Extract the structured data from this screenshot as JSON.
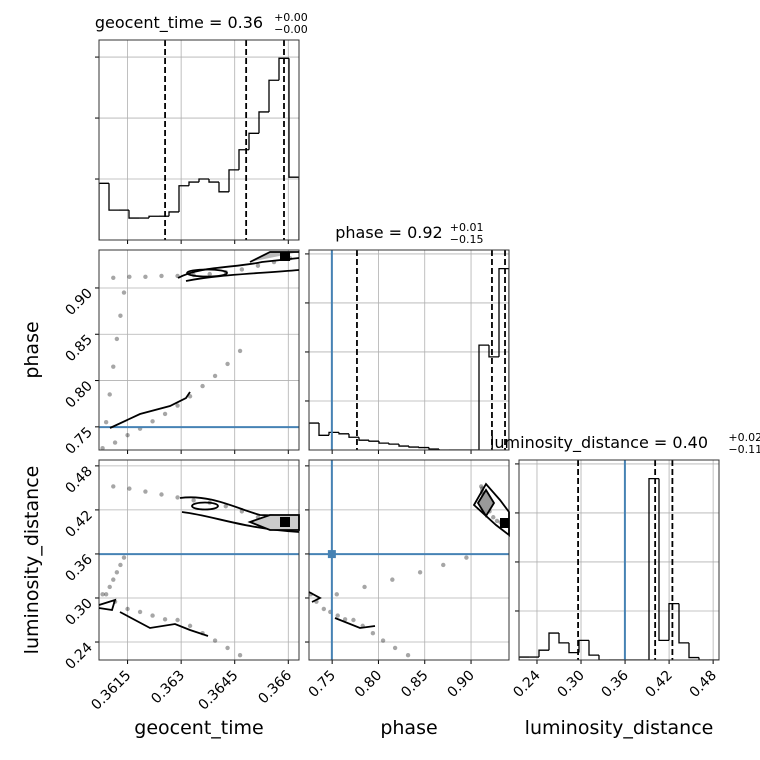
{
  "chart_data": {
    "type": "corner",
    "truth_color": "#4682b4",
    "parameters": [
      {
        "name": "geocent_time",
        "title": "geocent_time = 0.36",
        "title_plus": "+0.00",
        "title_minus": "−0.00",
        "xlim": [
          0.3607,
          0.3663
        ],
        "xticks": [
          0.3615,
          0.363,
          0.3645,
          0.366
        ],
        "bins": [
          0.3607,
          0.36098,
          0.36126,
          0.36154,
          0.36182,
          0.3621,
          0.36238,
          0.36266,
          0.36294,
          0.36322,
          0.3635,
          0.36378,
          0.36406,
          0.36434,
          0.36462,
          0.3649,
          0.36518,
          0.36546,
          0.36574,
          0.36602,
          0.3663
        ],
        "counts": [
          0.93,
          0.49,
          0.49,
          0.36,
          0.36,
          0.39,
          0.39,
          0.46,
          0.89,
          0.95,
          1.0,
          0.95,
          0.79,
          1.15,
          1.48,
          1.75,
          2.1,
          2.62,
          2.98,
          1.03
        ],
        "hist_ylim": [
          0,
          3.28
        ],
        "hist_yticks": [
          1,
          2,
          3
        ],
        "quantiles": [
          0.36255,
          0.36482,
          0.36588
        ]
      },
      {
        "name": "phase",
        "title": "phase = 0.92",
        "title_plus": "+0.01",
        "title_minus": "−0.15",
        "xlim": [
          0.725,
          0.941
        ],
        "xticks": [
          0.75,
          {
            "value": 0.8,
            "label": "0.80"
          },
          0.85,
          {
            "value": 0.9,
            "label": "0.90"
          }
        ],
        "bins": [
          0.725,
          0.7358,
          0.7466,
          0.7574,
          0.7682,
          0.779,
          0.7898,
          0.8006,
          0.8114,
          0.8222,
          0.833,
          0.8438,
          0.8546,
          0.8654,
          0.8762,
          0.887,
          0.8978,
          0.9086,
          0.9194,
          0.9302,
          0.941
        ],
        "counts": [
          0.55,
          0.3,
          0.36,
          0.33,
          0.26,
          0.2,
          0.18,
          0.14,
          0.12,
          0.08,
          0.06,
          0.05,
          0.02,
          0,
          0,
          0,
          0,
          2.14,
          1.9,
          3.7
        ],
        "hist_ylim": [
          0,
          4.08
        ],
        "hist_yticks": [
          1,
          2,
          3,
          4
        ],
        "quantiles": [
          0.7768,
          0.9226,
          0.9367
        ],
        "truth": 0.7497
      },
      {
        "name": "luminosity_distance",
        "title": "luminosity_distance = 0.40",
        "title_plus": "+0.02",
        "title_minus": "−0.11",
        "xlim": [
          0.2155,
          0.488
        ],
        "xticks": [
          0.24,
          {
            "value": 0.3,
            "label": "0.30"
          },
          0.36,
          0.42,
          0.48
        ],
        "bins": [
          0.2155,
          0.229125,
          0.24275,
          0.256375,
          0.27,
          0.283625,
          0.29725,
          0.310875,
          0.3245,
          0.338125,
          0.35175,
          0.365375,
          0.379,
          0.392625,
          0.40625,
          0.419875,
          0.4335,
          0.447125,
          0.46075,
          0.474375,
          0.488
        ],
        "counts": [
          0.06,
          0.06,
          0.2,
          0.55,
          0.35,
          0.15,
          0.4,
          0.1,
          0,
          0,
          0,
          0,
          0,
          3.7,
          0.4,
          1.15,
          0.35,
          0.05,
          0,
          0
        ],
        "hist_ylim": [
          0,
          4.08
        ],
        "hist_yticks": [
          1,
          2,
          3,
          4
        ],
        "quantiles": [
          0.296,
          0.401,
          0.4245
        ],
        "truth": 0.3598
      }
    ],
    "samples": {
      "geocent_time": [
        0.3611,
        0.36155,
        0.362,
        0.36245,
        0.3629,
        0.36335,
        0.3638,
        0.36425,
        0.3647,
        0.36515,
        0.3656,
        0.36605,
        0.3608,
        0.36115,
        0.3615,
        0.36185,
        0.3622,
        0.36255,
        0.3629,
        0.36325,
        0.3636,
        0.36395,
        0.3643,
        0.36465,
        0.3609,
        0.361,
        0.3611,
        0.3612,
        0.3613,
        0.3614
      ],
      "phase": [
        0.911,
        0.912,
        0.912,
        0.913,
        0.913,
        0.914,
        0.915,
        0.917,
        0.92,
        0.924,
        0.928,
        0.932,
        0.727,
        0.733,
        0.741,
        0.748,
        0.756,
        0.764,
        0.773,
        0.783,
        0.794,
        0.805,
        0.818,
        0.832,
        0.755,
        0.785,
        0.815,
        0.845,
        0.87,
        0.895
      ],
      "luminosity_distance": [
        0.452,
        0.449,
        0.445,
        0.441,
        0.437,
        0.433,
        0.43,
        0.425,
        0.418,
        0.41,
        0.405,
        0.403,
        0.305,
        0.295,
        0.285,
        0.281,
        0.276,
        0.271,
        0.27,
        0.262,
        0.252,
        0.242,
        0.232,
        0.222,
        0.305,
        0.315,
        0.325,
        0.335,
        0.345,
        0.355
      ]
    }
  }
}
